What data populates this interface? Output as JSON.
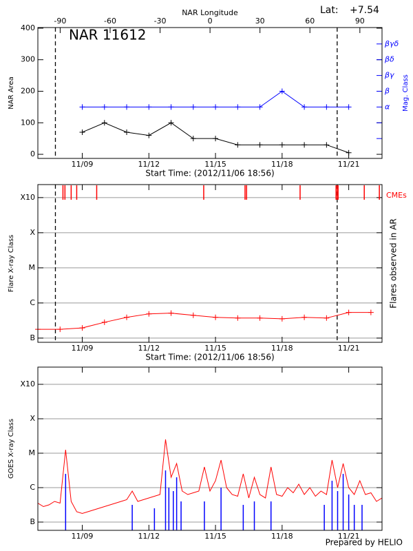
{
  "chart_data": [
    {
      "type": "line",
      "title": "NAR 11612",
      "lat_label": "Lat:",
      "lat_value": "+7.54",
      "top_axis_label": "NAR Longitude",
      "x_label": "Start Time: (2012/11/06 18:56)",
      "y_label": "NAR Area",
      "y2_label": "Mag. Class",
      "x": [
        9,
        10,
        11,
        12,
        13,
        14,
        15,
        16,
        17,
        18,
        19,
        20,
        21
      ],
      "xlim": [
        7,
        22.5
      ],
      "xticks": [
        {
          "value": 9,
          "label": "11/09"
        },
        {
          "value": 12,
          "label": "11/12"
        },
        {
          "value": 15,
          "label": "11/15"
        },
        {
          "value": 18,
          "label": "11/18"
        },
        {
          "value": 21,
          "label": "11/21"
        }
      ],
      "top_xlim": [
        -103.4,
        103.3
      ],
      "top_xticks": [
        -90,
        -60,
        -30,
        0,
        30,
        60,
        90
      ],
      "ylim": [
        -13,
        402
      ],
      "yticks": [
        0,
        100,
        200,
        300,
        400
      ],
      "y2lim": [
        -0.26,
        8.04
      ],
      "y2ticks": [
        {
          "value": 3,
          "label": "α"
        },
        {
          "value": 4,
          "label": "β"
        },
        {
          "value": 5,
          "label": "βγ"
        },
        {
          "value": 6,
          "label": "βδ"
        },
        {
          "value": 7,
          "label": "βγδ"
        }
      ],
      "y2_minor_ticks": [
        1,
        2
      ],
      "limb_times": [
        7.79,
        20.48
      ],
      "grid": false,
      "series": [
        {
          "color": "#000000",
          "values": [
            70,
            100,
            70,
            60,
            100,
            50,
            50,
            30,
            30,
            30,
            30,
            30,
            5
          ]
        },
        {
          "color": "#0000ff",
          "axis": "y2",
          "values": [
            3,
            3,
            3,
            3,
            3,
            3,
            3,
            3,
            3,
            4,
            3,
            3,
            3
          ]
        }
      ]
    },
    {
      "type": "line",
      "x_label": "Start Time: (2012/11/06 18:56)",
      "y_label": "Flare X-ray Class",
      "y2_label": "Flares observed in AR",
      "cme_label": "CMEs",
      "cme_color": "#ff0000",
      "cme_times": [
        8.13,
        8.22,
        8.5,
        8.75,
        9.65,
        14.47,
        16.33,
        16.4,
        18.81,
        20.43,
        20.49,
        20.52,
        21.7,
        22.38
      ],
      "x": [
        7,
        8,
        9,
        10,
        11,
        12,
        13,
        14,
        15,
        16,
        17,
        18,
        19,
        20,
        21,
        22
      ],
      "xlim": [
        7,
        22.5
      ],
      "xticks": [
        {
          "value": 9,
          "label": "11/09"
        },
        {
          "value": 12,
          "label": "11/12"
        },
        {
          "value": 15,
          "label": "11/15"
        },
        {
          "value": 18,
          "label": "11/18"
        },
        {
          "value": 21,
          "label": "11/21"
        }
      ],
      "ylim": [
        -0.12,
        4.37
      ],
      "yticks": [
        {
          "value": 0,
          "label": "B"
        },
        {
          "value": 1,
          "label": "C"
        },
        {
          "value": 2,
          "label": "M"
        },
        {
          "value": 3,
          "label": "X"
        },
        {
          "value": 4,
          "label": "X10"
        }
      ],
      "limb_times": [
        7.79,
        20.48
      ],
      "grid": true,
      "series": [
        {
          "color": "#ff0000",
          "values": [
            0.25,
            0.25,
            0.29,
            0.45,
            0.59,
            0.69,
            0.71,
            0.65,
            0.59,
            0.57,
            0.57,
            0.55,
            0.59,
            0.57,
            0.73,
            0.73
          ]
        }
      ]
    },
    {
      "type": "line",
      "y_label": "GOES X-ray Class",
      "credit": "Prepared by HELIO",
      "x": [
        7,
        7.25,
        7.5,
        7.75,
        8,
        8.25,
        8.5,
        8.75,
        9,
        9.25,
        9.5,
        9.75,
        10,
        10.25,
        10.5,
        10.75,
        11,
        11.25,
        11.5,
        11.75,
        12,
        12.25,
        12.5,
        12.75,
        13,
        13.25,
        13.5,
        13.75,
        14,
        14.25,
        14.5,
        14.75,
        15,
        15.25,
        15.5,
        15.75,
        16,
        16.25,
        16.5,
        16.75,
        17,
        17.25,
        17.5,
        17.75,
        18,
        18.25,
        18.5,
        18.75,
        19,
        19.25,
        19.5,
        19.75,
        20,
        20.25,
        20.5,
        20.75,
        21,
        21.25,
        21.5,
        21.75,
        22,
        22.25,
        22.5
      ],
      "xlim": [
        7,
        22.5
      ],
      "xticks": [
        {
          "value": 9,
          "label": "11/09"
        },
        {
          "value": 12,
          "label": "11/12"
        },
        {
          "value": 15,
          "label": "11/15"
        },
        {
          "value": 18,
          "label": "11/18"
        },
        {
          "value": 21,
          "label": "11/21"
        }
      ],
      "ylim": [
        -0.24,
        4.5
      ],
      "yticks": [
        {
          "value": 0,
          "label": "B"
        },
        {
          "value": 1,
          "label": "C"
        },
        {
          "value": 2,
          "label": "M"
        },
        {
          "value": 3,
          "label": "X"
        },
        {
          "value": 4,
          "label": "X10"
        }
      ],
      "grid": true,
      "series": [
        {
          "color": "#ff0000",
          "values": [
            0.55,
            0.45,
            0.5,
            0.6,
            0.55,
            2.1,
            0.6,
            0.3,
            0.25,
            0.3,
            0.35,
            0.4,
            0.45,
            0.5,
            0.55,
            0.6,
            0.65,
            0.9,
            0.6,
            0.65,
            0.7,
            0.75,
            0.8,
            2.4,
            1.3,
            1.7,
            0.9,
            0.8,
            0.85,
            0.9,
            1.6,
            0.9,
            1.2,
            1.8,
            1.0,
            0.8,
            0.75,
            1.4,
            0.7,
            1.3,
            0.8,
            0.7,
            1.6,
            0.8,
            0.75,
            1.0,
            0.85,
            1.1,
            0.8,
            1.0,
            0.75,
            0.9,
            0.8,
            1.8,
            1.0,
            1.7,
            1.0,
            0.8,
            1.2,
            0.8,
            0.85,
            0.6,
            0.7
          ]
        }
      ],
      "flares": {
        "color": "#0000ff",
        "x": [
          8.25,
          11.25,
          12.25,
          12.75,
          12.9,
          13.1,
          13.25,
          13.45,
          14.5,
          15.25,
          16.25,
          16.75,
          17.5,
          19.9,
          20.25,
          20.5,
          20.75,
          21.0,
          21.25,
          21.6
        ],
        "values": [
          1.4,
          0.5,
          0.4,
          1.5,
          1.0,
          0.9,
          1.3,
          0.6,
          0.6,
          1.0,
          0.5,
          0.6,
          0.6,
          0.5,
          1.2,
          0.9,
          1.4,
          0.8,
          0.5,
          0.5
        ]
      }
    }
  ]
}
